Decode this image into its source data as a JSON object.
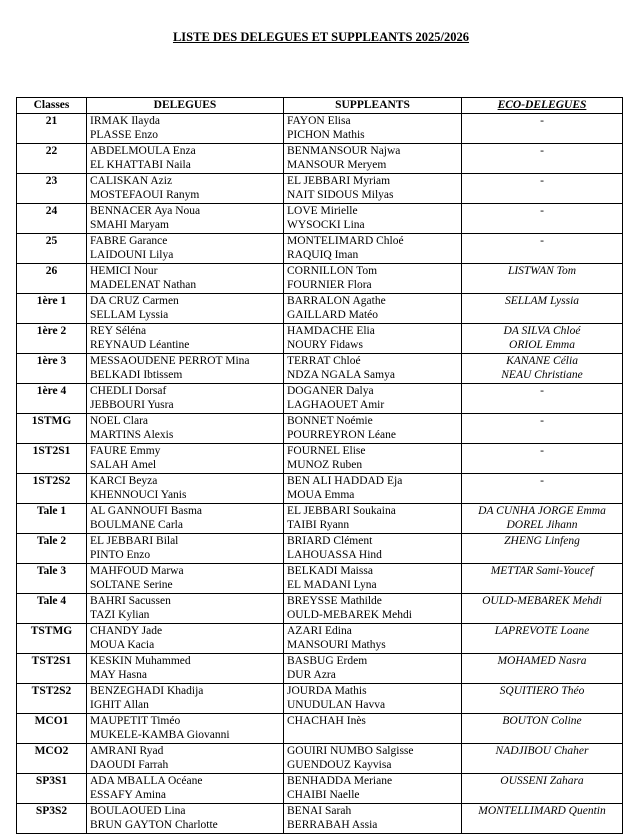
{
  "header": {
    "title": "LISTE DES DELEGUES ET SUPPLEANTS 2025/2026"
  },
  "table": {
    "header": [
      "Classes",
      "DELEGUES",
      "SUPPLEANTS",
      "ECO-DELEGUES"
    ],
    "rows": [
      [
        "21",
        [
          "IRMAK Ilayda",
          "PLASSE Enzo"
        ],
        [
          "FAYON Elisa",
          "PICHON Mathis"
        ],
        [
          "-"
        ]
      ],
      [
        "22",
        [
          "ABDELMOULA Enza",
          "EL KHATTABI Naila"
        ],
        [
          "BENMANSOUR Najwa",
          "MANSOUR Meryem"
        ],
        [
          "-"
        ]
      ],
      [
        "23",
        [
          "CALISKAN Aziz",
          "MOSTEFAOUI Ranym"
        ],
        [
          "EL JEBBARI Myriam",
          "NAIT SIDOUS Milyas"
        ],
        [
          "-"
        ]
      ],
      [
        "24",
        [
          "BENNACER Aya Noua",
          "SMAHI Maryam"
        ],
        [
          "LOVE Mirielle",
          "WYSOCKI Lina"
        ],
        [
          "-"
        ]
      ],
      [
        "25",
        [
          "FABRE Garance",
          "LAIDOUNI Lilya"
        ],
        [
          "MONTELIMARD Chloé",
          "RAQUIQ Iman"
        ],
        [
          "-"
        ]
      ],
      [
        "26",
        [
          "HEMICI Nour",
          "MADELENAT Nathan"
        ],
        [
          "CORNILLON Tom",
          "FOURNIER Flora"
        ],
        [
          "LISTWAN Tom"
        ]
      ],
      [
        "1ère 1",
        [
          "DA CRUZ Carmen",
          "SELLAM Lyssia"
        ],
        [
          "BARRALON Agathe",
          "GAILLARD Matéo"
        ],
        [
          "SELLAM Lyssia"
        ]
      ],
      [
        "1ère 2",
        [
          "REY Séléna",
          "REYNAUD Léantine"
        ],
        [
          "HAMDACHE Elia",
          "NOURY Fidaws"
        ],
        [
          "DA SILVA Chloé",
          "ORIOL Emma"
        ]
      ],
      [
        "1ère 3",
        [
          "MESSAOUDENE PERROT Mina",
          "BELKADI Ibtissem"
        ],
        [
          "TERRAT Chloé",
          "NDZA NGALA Samya"
        ],
        [
          "KANANE Célia",
          "NEAU Christiane"
        ]
      ],
      [
        "1ère 4",
        [
          "CHEDLI Dorsaf",
          "JEBBOURI Yusra"
        ],
        [
          "DOGANER Dalya",
          "LAGHAOUET Amir"
        ],
        [
          "-"
        ]
      ],
      [
        "1STMG",
        [
          "NOEL Clara",
          "MARTINS Alexis"
        ],
        [
          "BONNET Noémie",
          "POURREYRON Léane"
        ],
        [
          "-"
        ]
      ],
      [
        "1ST2S1",
        [
          "FAURE Emmy",
          "SALAH Amel"
        ],
        [
          "FOURNEL Elise",
          "MUNOZ Ruben"
        ],
        [
          "-"
        ]
      ],
      [
        "1ST2S2",
        [
          "KARCI Beyza",
          "KHENNOUCI Yanis"
        ],
        [
          "BEN ALI HADDAD Eja",
          "MOUA Emma"
        ],
        [
          "-"
        ]
      ],
      [
        "Tale 1",
        [
          "AL GANNOUFI Basma",
          "BOULMANE Carla"
        ],
        [
          "EL JEBBARI Soukaina",
          "TAIBI Ryann"
        ],
        [
          "DA CUNHA JORGE Emma",
          "DOREL Jihann"
        ]
      ],
      [
        "Tale 2",
        [
          "EL JEBBARI Bilal",
          "PINTO Enzo"
        ],
        [
          "BRIARD Clément",
          "LAHOUASSA Hind"
        ],
        [
          "ZHENG Linfeng"
        ]
      ],
      [
        "Tale 3",
        [
          "MAHFOUD Marwa",
          "SOLTANE Serine"
        ],
        [
          "BELKADI Maissa",
          "EL MADANI Lyna"
        ],
        [
          "METTAR Sami-Youcef"
        ]
      ],
      [
        "Tale 4",
        [
          "BAHRI Sacussen",
          "TAZI Kylian"
        ],
        [
          "BREYSSE Mathilde",
          "OULD-MEBAREK Mehdi"
        ],
        [
          "OULD-MEBAREK Mehdi"
        ]
      ],
      [
        "TSTMG",
        [
          "CHANDY Jade",
          "MOUA Kacia"
        ],
        [
          "AZARI Edina",
          "MANSOURI Mathys"
        ],
        [
          "LAPREVOTE Loane"
        ]
      ],
      [
        "TST2S1",
        [
          "KESKIN Muhammed",
          "MAY Hasna"
        ],
        [
          "BASBUG Erdem",
          "DUR Azra"
        ],
        [
          "MOHAMED Nasra"
        ]
      ],
      [
        "TST2S2",
        [
          "BENZEGHADI Khadija",
          "IGHIT Allan"
        ],
        [
          "JOURDA Mathis",
          "UNUDULAN Havva"
        ],
        [
          "SQUITIERO Théo"
        ]
      ],
      [
        "MCO1",
        [
          "MAUPETIT Timéo",
          "MUKELE-KAMBA Giovanni"
        ],
        [
          "CHACHAH Inès"
        ],
        [
          "BOUTON Coline"
        ]
      ],
      [
        "MCO2",
        [
          "AMRANI Ryad",
          "DAOUDI Farrah"
        ],
        [
          "GOUIRI NUMBO Salgisse",
          "GUENDOUZ Kayvisa"
        ],
        [
          "NADJIBOU Chaher"
        ]
      ],
      [
        "SP3S1",
        [
          "ADA MBALLA Océane",
          "ESSAFY Amina"
        ],
        [
          "BENHADDA Meriane",
          "CHAIBI Naelle"
        ],
        [
          "OUSSENI Zahara"
        ]
      ],
      [
        "SP3S2",
        [
          "BOULAOUED Lina",
          "BRUN GAYTON Charlotte"
        ],
        [
          "BENAI Sarah",
          "BERRABAH Assia"
        ],
        [
          "MONTELLIMARD Quentin"
        ]
      ]
    ]
  }
}
